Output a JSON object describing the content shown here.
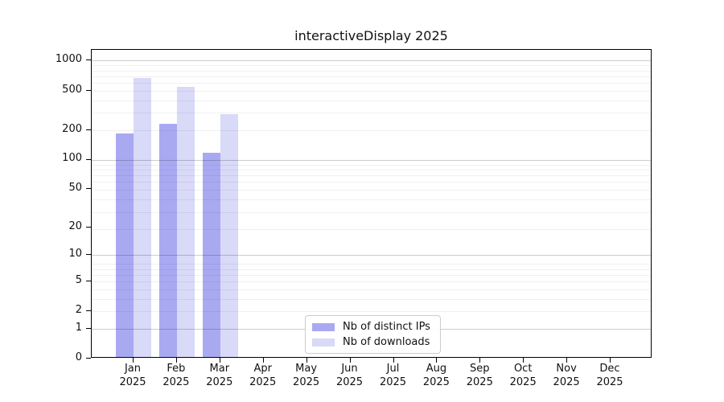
{
  "chart_data": {
    "type": "bar",
    "title": "interactiveDisplay 2025",
    "year": "2025",
    "categories": [
      "Jan",
      "Feb",
      "Mar",
      "Apr",
      "May",
      "Jun",
      "Jul",
      "Aug",
      "Sep",
      "Oct",
      "Nov",
      "Dec"
    ],
    "series": [
      {
        "name": "Nb of distinct IPs",
        "color": "#a9a9f2",
        "values": [
          177,
          222,
          113,
          0,
          0,
          0,
          0,
          0,
          0,
          0,
          0,
          0
        ]
      },
      {
        "name": "Nb of downloads",
        "color": "#d9d9f8",
        "values": [
          645,
          525,
          278,
          0,
          0,
          0,
          0,
          0,
          0,
          0,
          0,
          0
        ]
      }
    ],
    "yticks": [
      0,
      1,
      2,
      5,
      10,
      20,
      50,
      100,
      200,
      500,
      1000
    ],
    "yscale": "log1p",
    "ylim": [
      0,
      1285
    ],
    "grid": true,
    "grid_major_at": [
      1,
      10,
      100,
      1000
    ],
    "legend_position": "lower center inside",
    "colors": {
      "axis": "#000000",
      "grid_major": "#c9c9c9",
      "grid_minor": "#f0f0f0",
      "background": "#ffffff"
    }
  }
}
